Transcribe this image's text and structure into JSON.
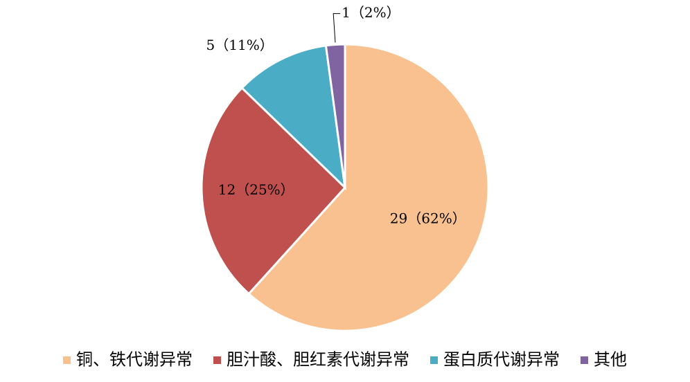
{
  "chart_data": {
    "type": "pie",
    "categories": [
      "铜、铁代谢异常",
      "胆汁酸、胆红素代谢异常",
      "蛋白质代谢异常",
      "其他"
    ],
    "values": [
      29,
      12,
      5,
      1
    ],
    "value_labels": [
      "29（62%）",
      "12（25%）",
      "5（11%）",
      "1（2%）"
    ],
    "colors": [
      "#f9c090",
      "#c0504d",
      "#4bacc6",
      "#8064a2"
    ],
    "legend": "bottom"
  }
}
